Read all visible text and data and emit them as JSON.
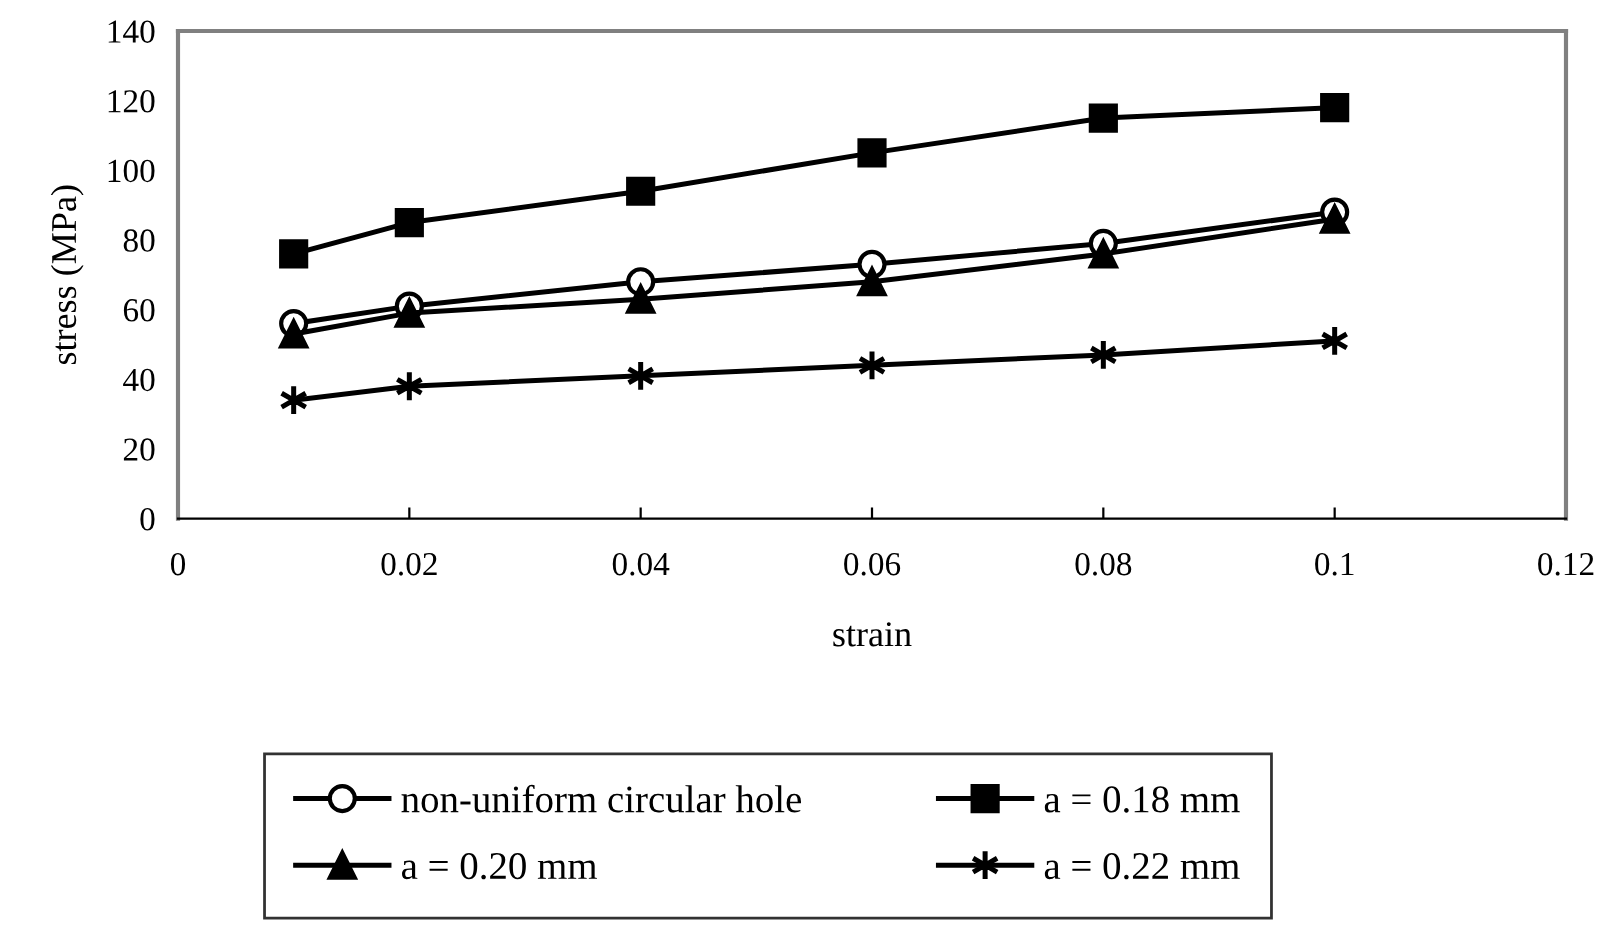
{
  "chart_data": {
    "type": "line",
    "xlabel": "strain",
    "ylabel": "stress (MPa)",
    "x": [
      0.01,
      0.02,
      0.04,
      0.06,
      0.08,
      0.1
    ],
    "xlim": [
      0,
      0.12
    ],
    "xticks": [
      0,
      0.02,
      0.04,
      0.06,
      0.08,
      0.1,
      0.12
    ],
    "ylim": [
      0,
      140
    ],
    "yticks": [
      0,
      20,
      40,
      60,
      80,
      100,
      120,
      140
    ],
    "grid": false,
    "legend": "bottom",
    "line_style": "solid",
    "series": [
      {
        "name": "non-uniform circular hole",
        "color": "#000000",
        "marker": "circle",
        "values": [
          56,
          61,
          68,
          73,
          79,
          88
        ]
      },
      {
        "name": "a = 0.18 mm",
        "color": "#000000",
        "marker": "square",
        "values": [
          76,
          85,
          94,
          105,
          115,
          118
        ]
      },
      {
        "name": "a = 0.20 mm",
        "color": "#000000",
        "marker": "triangle",
        "values": [
          53,
          59,
          63,
          68,
          76,
          86
        ]
      },
      {
        "name": "a = 0.22 mm",
        "color": "#000000",
        "marker": "cross",
        "values": [
          34,
          38,
          41,
          44,
          47,
          51
        ]
      }
    ]
  }
}
